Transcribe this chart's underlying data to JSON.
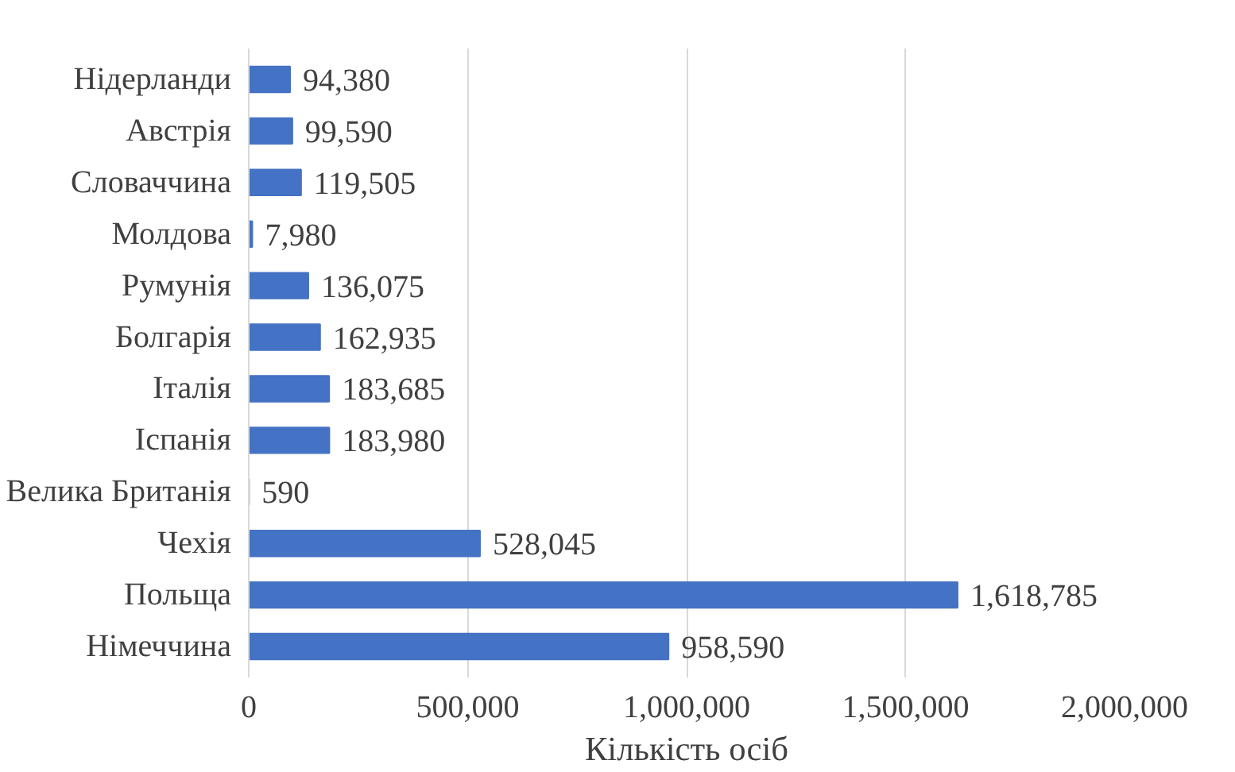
{
  "chart_data": {
    "type": "bar",
    "orientation": "horizontal",
    "xlabel": "Кількість осіб",
    "categories": [
      "Нідерланди",
      "Австрія",
      "Словаччина",
      "Молдова",
      "Румунія",
      "Болгарія",
      "Італія",
      "Іспанія",
      "Велика Британія",
      "Чехія",
      "Польща",
      "Німеччина"
    ],
    "values": [
      94380,
      99590,
      119505,
      7980,
      136075,
      162935,
      183685,
      183980,
      590,
      528045,
      1618785,
      958590
    ],
    "value_labels": [
      "94,380",
      "99,590",
      "119,505",
      "7,980",
      "136,075",
      "162,935",
      "183,685",
      "183,980",
      "590",
      "528,045",
      "1,618,785",
      "958,590"
    ],
    "color": "#4472c4",
    "xlim": [
      0,
      2000000
    ],
    "xticks": [
      {
        "value": 0,
        "label": "0"
      },
      {
        "value": 500000,
        "label": "500,000"
      },
      {
        "value": 1000000,
        "label": "1,000,000"
      },
      {
        "value": 1500000,
        "label": "1,500,000"
      },
      {
        "value": 2000000,
        "label": "2,000,000"
      }
    ],
    "grid": "x"
  }
}
